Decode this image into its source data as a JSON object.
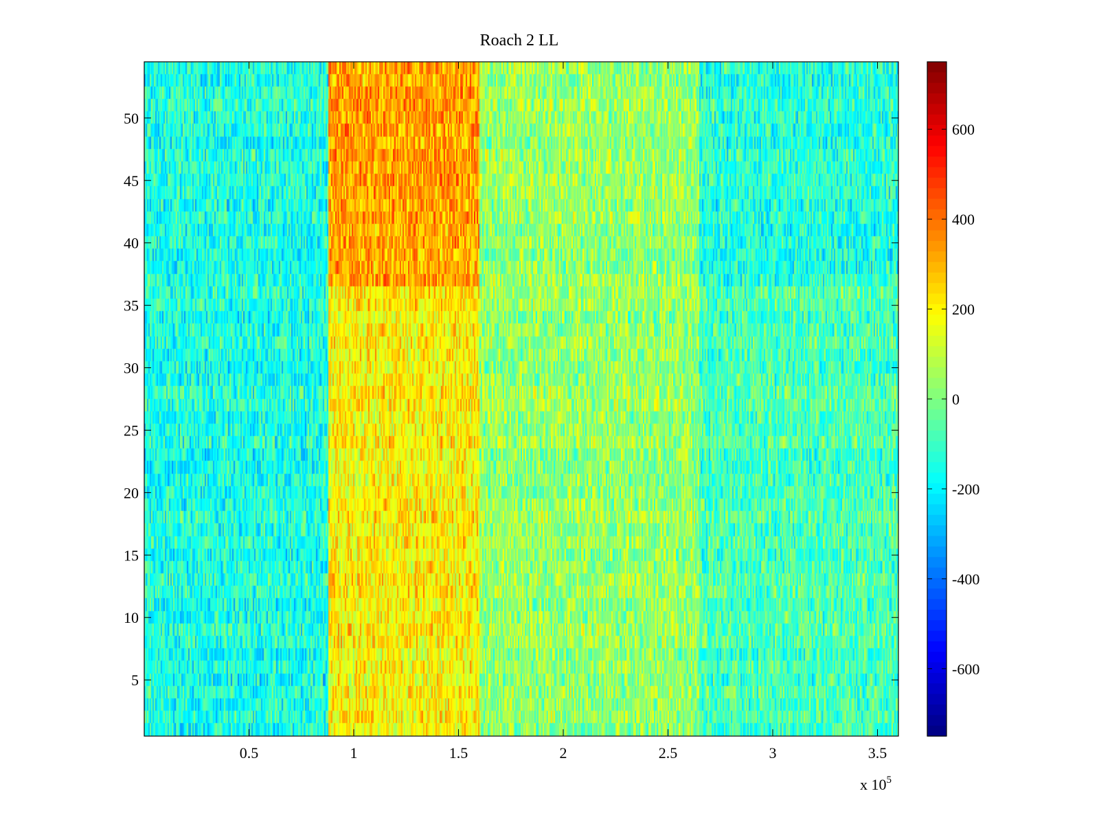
{
  "chart_data": {
    "type": "heatmap",
    "title": "Roach 2 LL",
    "xlabel": "",
    "ylabel": "",
    "x_exponent_label": "x 10",
    "x_exponent_power": "5",
    "xlim": [
      0,
      3.6
    ],
    "ylim": [
      0.5,
      54.5
    ],
    "x_ticks": [
      0.5,
      1,
      1.5,
      2,
      2.5,
      3,
      3.5
    ],
    "x_tick_labels": [
      "0.5",
      "1",
      "1.5",
      "2",
      "2.5",
      "3",
      "3.5"
    ],
    "y_ticks": [
      5,
      10,
      15,
      20,
      25,
      30,
      35,
      40,
      45,
      50
    ],
    "y_tick_labels": [
      "5",
      "10",
      "15",
      "20",
      "25",
      "30",
      "35",
      "40",
      "45",
      "50"
    ],
    "rows": 54,
    "colorbar": {
      "range": [
        -750,
        750
      ],
      "colormap": "jet",
      "ticks": [
        600,
        400,
        200,
        0,
        -200,
        -400,
        -600
      ],
      "tick_labels": [
        "600",
        "400",
        "200",
        "0",
        "-200",
        "-400",
        "-600"
      ]
    },
    "regions": [
      {
        "x_range": [
          0,
          0.88
        ],
        "mean_value": -150,
        "description_level": "low"
      },
      {
        "x_range": [
          0.88,
          1.6
        ],
        "mean_value": 200,
        "description_level": "high"
      },
      {
        "x_range": [
          1.6,
          2.65
        ],
        "mean_value": 30,
        "description_level": "mid"
      },
      {
        "x_range": [
          2.65,
          3.6
        ],
        "mean_value": -80,
        "description_level": "low-mid"
      }
    ],
    "grid": false,
    "legend": "none"
  }
}
